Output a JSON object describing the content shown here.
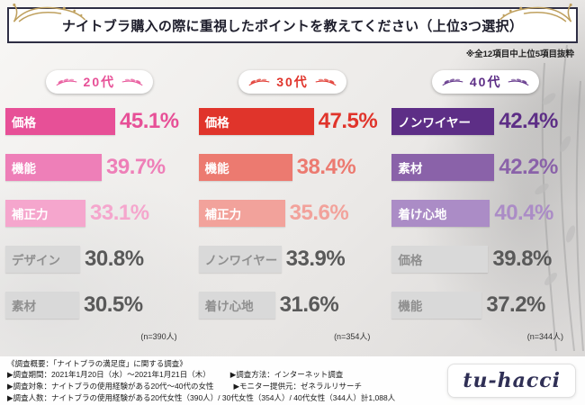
{
  "header": {
    "title": "ナイトブラ購入の際に重視したポイントを教えてください（上位3つ選択）",
    "note": "※全12項目中上位5項目抜粋"
  },
  "chart_data": {
    "type": "bar",
    "orientation": "horizontal",
    "unit": "%",
    "xlim": [
      0,
      50
    ],
    "title": "ナイトブラ購入の際に重視したポイントを教えてください（上位3つ選択）",
    "note": "※全12項目中上位5項目抜粋",
    "groups": [
      {
        "label": "20代",
        "accent": "#e75097",
        "sample": "(n=390人)",
        "items": [
          {
            "label": "価格",
            "value": 45.1,
            "display": "45.1%",
            "bar": "#e75097",
            "text": "#ffffff",
            "pct": "#e75097"
          },
          {
            "label": "機能",
            "value": 39.7,
            "display": "39.7%",
            "bar": "#ee7fb8",
            "text": "#ffffff",
            "pct": "#ee7fb8"
          },
          {
            "label": "補正力",
            "value": 33.1,
            "display": "33.1%",
            "bar": "#f5a6cd",
            "text": "#ffffff",
            "pct": "#f5a6cd"
          },
          {
            "label": "デザイン",
            "value": 30.8,
            "display": "30.8%",
            "bar": "#d9d9d9",
            "text": "#8f8f8f",
            "pct": "#595959"
          },
          {
            "label": "素材",
            "value": 30.5,
            "display": "30.5%",
            "bar": "#d9d9d9",
            "text": "#8f8f8f",
            "pct": "#595959"
          }
        ]
      },
      {
        "label": "30代",
        "accent": "#e0342b",
        "sample": "(n=354人)",
        "items": [
          {
            "label": "価格",
            "value": 47.5,
            "display": "47.5%",
            "bar": "#e0342b",
            "text": "#ffffff",
            "pct": "#e0342b"
          },
          {
            "label": "機能",
            "value": 38.4,
            "display": "38.4%",
            "bar": "#ec7a70",
            "text": "#ffffff",
            "pct": "#ec7a70"
          },
          {
            "label": "補正力",
            "value": 35.6,
            "display": "35.6%",
            "bar": "#f2a29b",
            "text": "#ffffff",
            "pct": "#f2a29b"
          },
          {
            "label": "ノンワイヤー",
            "value": 33.9,
            "display": "33.9%",
            "bar": "#d9d9d9",
            "text": "#8f8f8f",
            "pct": "#595959"
          },
          {
            "label": "着け心地",
            "value": 31.6,
            "display": "31.6%",
            "bar": "#d9d9d9",
            "text": "#8f8f8f",
            "pct": "#595959"
          }
        ]
      },
      {
        "label": "40代",
        "accent": "#5d2e86",
        "sample": "(n=344人)",
        "items": [
          {
            "label": "ノンワイヤー",
            "value": 42.4,
            "display": "42.4%",
            "bar": "#5d2e86",
            "text": "#ffffff",
            "pct": "#5d2e86"
          },
          {
            "label": "素材",
            "value": 42.2,
            "display": "42.2%",
            "bar": "#8a62a9",
            "text": "#ffffff",
            "pct": "#8a62a9"
          },
          {
            "label": "着け心地",
            "value": 40.4,
            "display": "40.4%",
            "bar": "#ab8cc6",
            "text": "#ffffff",
            "pct": "#ab8cc6"
          },
          {
            "label": "価格",
            "value": 39.8,
            "display": "39.8%",
            "bar": "#d9d9d9",
            "text": "#8f8f8f",
            "pct": "#595959"
          },
          {
            "label": "機能",
            "value": 37.2,
            "display": "37.2%",
            "bar": "#d9d9d9",
            "text": "#8f8f8f",
            "pct": "#595959"
          }
        ]
      }
    ]
  },
  "footer": {
    "survey_title": "《調査概要：「ナイトブラの満足度」に関する調査》",
    "period": "▶調査期間：2021年1月20日（水）〜2021年1月21日（木）",
    "method": "▶調査方法：インターネット調査",
    "target": "▶調査対象：ナイトブラの使用経験がある20代〜40代の女性",
    "monitor": "▶モニター提供元：ゼネラルリサーチ",
    "count": "▶調査人数：ナイトブラの使用経験がある20代女性（390人）/ 30代女性（354人）/ 40代女性（344人）計1,088人",
    "logo": "tu-hacci"
  }
}
